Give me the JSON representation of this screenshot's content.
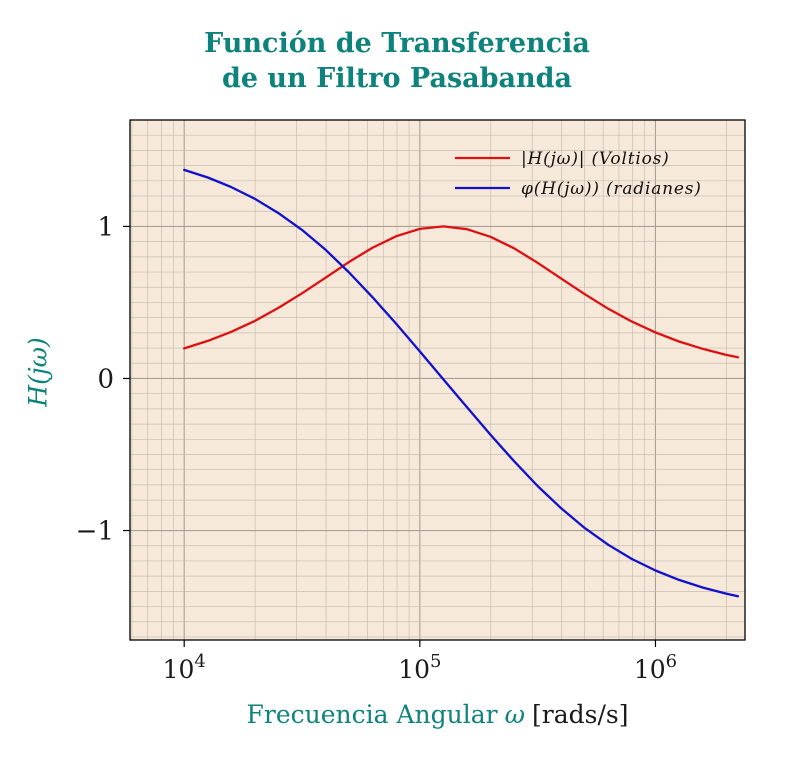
{
  "title": {
    "line1": "Función de Transferencia",
    "line2": "de un Filtro Pasabanda"
  },
  "axes": {
    "y_label": "H(jω)",
    "x_label_main": "Frecuencia Angular",
    "x_label_omega": "ω",
    "x_label_unit": "[rads/s]"
  },
  "colors": {
    "title": "#0e837d",
    "plot_bg": "#f7e9d9",
    "grid_minor": "#c6beb4",
    "grid_major": "#a9a198",
    "frame": "#000000",
    "magnitude": "#dd1111",
    "phase": "#1111cc",
    "tick_text": "#1a1a1a"
  },
  "chart_data": {
    "type": "line",
    "title": "Función de Transferencia de un Filtro Pasabanda",
    "xlabel": "Frecuencia Angular ω [rads/s]",
    "ylabel": "H(jω)",
    "x_scale": "log",
    "grid": "both",
    "legend_position": "top-right",
    "xlim_log10": [
      3.77,
      6.38
    ],
    "ylim": [
      -1.72,
      1.7
    ],
    "x_major_ticks_log10": [
      4,
      5,
      6
    ],
    "x_tick_base": "10",
    "x_tick_exponents": [
      "4",
      "5",
      "6"
    ],
    "y_ticks": [
      -1,
      0,
      1
    ],
    "y_minor_step": 0.1,
    "log_omega": [
      4.0,
      4.1,
      4.2,
      4.3,
      4.4,
      4.5,
      4.6,
      4.7,
      4.8,
      4.9,
      5.0,
      5.1,
      5.2,
      5.3,
      5.4,
      5.5,
      5.6,
      5.7,
      5.8,
      5.9,
      6.0,
      6.1,
      6.2,
      6.3,
      6.35
    ],
    "series": [
      {
        "name": "|H(jω)| (Voltios)",
        "color": "#dd1111",
        "values": [
          0.198,
          0.247,
          0.307,
          0.379,
          0.464,
          0.56,
          0.663,
          0.767,
          0.861,
          0.936,
          0.984,
          1.0,
          0.982,
          0.932,
          0.856,
          0.761,
          0.657,
          0.554,
          0.458,
          0.374,
          0.303,
          0.243,
          0.195,
          0.155,
          0.139
        ]
      },
      {
        "name": "φ(H(jω)) (radianes)",
        "color": "#1111cc",
        "values": [
          1.372,
          1.322,
          1.259,
          1.182,
          1.088,
          0.977,
          0.846,
          0.697,
          0.533,
          0.359,
          0.178,
          -0.006,
          -0.189,
          -0.37,
          -0.544,
          -0.707,
          -0.854,
          -0.984,
          -1.094,
          -1.187,
          -1.263,
          -1.325,
          -1.375,
          -1.415,
          -1.432
        ]
      }
    ]
  }
}
